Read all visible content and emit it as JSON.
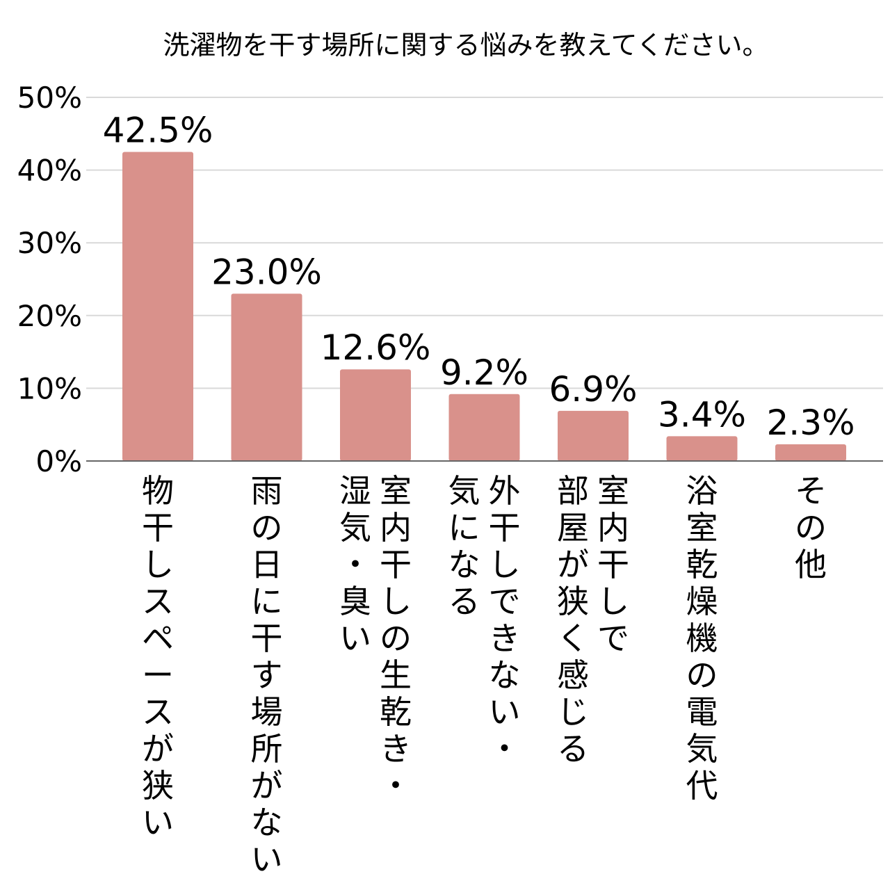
{
  "chart_data": {
    "type": "bar",
    "title": "洗濯物を干す場所に関する悩みを教えてください。",
    "xlabel": "",
    "ylabel": "",
    "ylim": [
      0,
      50
    ],
    "yticks": [
      "0%",
      "10%",
      "20%",
      "30%",
      "40%",
      "50%"
    ],
    "grid": true,
    "legend": "none",
    "categories": [
      "物干しスペースが狭い",
      "雨の日に干す場所がない",
      "室内干しの生乾き・湿気・臭い",
      "外干しできない・気になる",
      "室内干しで部屋が狭く感じる",
      "浴室乾燥機の電気代",
      "その他"
    ],
    "category_lines": [
      [
        "物干しスペースが狭い"
      ],
      [
        "雨の日に干す場所がない"
      ],
      [
        "湿気・臭い",
        "室内干しの生乾き・"
      ],
      [
        "気になる",
        "外干しできない・"
      ],
      [
        "部屋が狭く感じる",
        "室内干しで"
      ],
      [
        "浴室乾燥機の電気代"
      ],
      [
        "その他"
      ]
    ],
    "values": [
      42.5,
      23.0,
      12.6,
      9.2,
      6.9,
      3.4,
      2.3
    ],
    "data_labels": [
      "42.5%",
      "23.0%",
      "12.6%",
      "9.2%",
      "6.9%",
      "3.4%",
      "2.3%"
    ],
    "colors": {
      "bar": "#d9918b",
      "grid": "#d9d9d9",
      "axis": "#666666"
    }
  }
}
